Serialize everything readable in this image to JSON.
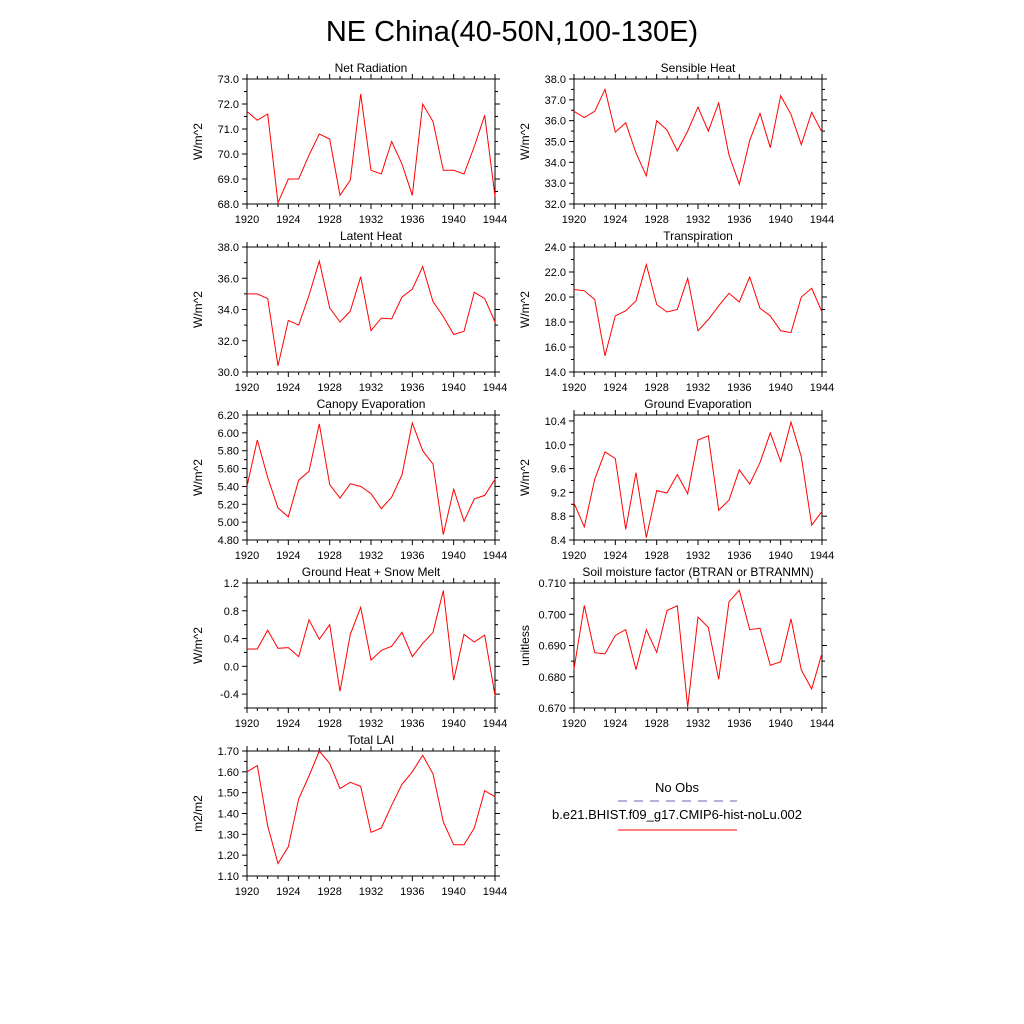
{
  "title": "NE China(40-50N,100-130E)",
  "colors": {
    "model": "#ff0000",
    "obs": "#6a6ab0"
  },
  "legend": {
    "obs_label": "No Obs",
    "model_label": "b.e21.BHIST.f09_g17.CMIP6-hist-noLu.002"
  },
  "chart_data": [
    {
      "type": "line",
      "title": "Net Radiation",
      "ylabel": "W/m^2",
      "xlim": [
        1920,
        1944
      ],
      "ylim": [
        68.0,
        73.0
      ],
      "xticks": [
        "1920",
        "1924",
        "1928",
        "1932",
        "1936",
        "1940",
        "1944"
      ],
      "yticks": [
        "68.0",
        "69.0",
        "70.0",
        "71.0",
        "72.0",
        "73.0"
      ],
      "x": [
        1920,
        1921,
        1922,
        1923,
        1924,
        1925,
        1926,
        1927,
        1928,
        1929,
        1930,
        1931,
        1932,
        1933,
        1934,
        1935,
        1936,
        1937,
        1938,
        1939,
        1940,
        1941,
        1942,
        1943,
        1944
      ],
      "series": [
        {
          "values": [
            71.7,
            71.35,
            71.6,
            68.05,
            69.0,
            69.0,
            69.95,
            70.8,
            70.6,
            68.35,
            68.95,
            72.4,
            69.35,
            69.2,
            70.5,
            69.6,
            68.35,
            72.0,
            71.3,
            69.35,
            69.35,
            69.2,
            70.3,
            71.55,
            68.3
          ]
        }
      ]
    },
    {
      "type": "line",
      "title": "Sensible Heat",
      "ylabel": "W/m^2",
      "xlim": [
        1920,
        1944
      ],
      "ylim": [
        32.0,
        38.0
      ],
      "xticks": [
        "1920",
        "1924",
        "1928",
        "1932",
        "1936",
        "1940",
        "1944"
      ],
      "yticks": [
        "32.0",
        "33.0",
        "34.0",
        "35.0",
        "36.0",
        "37.0",
        "38.0"
      ],
      "x": [
        1920,
        1921,
        1922,
        1923,
        1924,
        1925,
        1926,
        1927,
        1928,
        1929,
        1930,
        1931,
        1932,
        1933,
        1934,
        1935,
        1936,
        1937,
        1938,
        1939,
        1940,
        1941,
        1942,
        1943,
        1944
      ],
      "series": [
        {
          "values": [
            36.45,
            36.15,
            36.45,
            37.5,
            35.45,
            35.9,
            34.45,
            33.35,
            36.0,
            35.55,
            34.55,
            35.5,
            36.65,
            35.5,
            36.85,
            34.35,
            32.95,
            35.05,
            36.35,
            34.7,
            37.2,
            36.3,
            34.85,
            36.4,
            35.45
          ]
        }
      ]
    },
    {
      "type": "line",
      "title": "Latent Heat",
      "ylabel": "W/m^2",
      "xlim": [
        1920,
        1944
      ],
      "ylim": [
        30.0,
        38.0
      ],
      "xticks": [
        "1920",
        "1924",
        "1928",
        "1932",
        "1936",
        "1940",
        "1944"
      ],
      "yticks": [
        "30.0",
        "32.0",
        "34.0",
        "36.0",
        "38.0"
      ],
      "x": [
        1920,
        1921,
        1922,
        1923,
        1924,
        1925,
        1926,
        1927,
        1928,
        1929,
        1930,
        1931,
        1932,
        1933,
        1934,
        1935,
        1936,
        1937,
        1938,
        1939,
        1940,
        1941,
        1942,
        1943,
        1944
      ],
      "series": [
        {
          "values": [
            35.0,
            35.0,
            34.7,
            30.4,
            33.3,
            33.0,
            34.9,
            37.1,
            34.1,
            33.2,
            33.9,
            36.1,
            32.65,
            33.45,
            33.4,
            34.8,
            35.3,
            36.75,
            34.5,
            33.55,
            32.4,
            32.6,
            35.1,
            34.7,
            33.2
          ]
        }
      ]
    },
    {
      "type": "line",
      "title": "Transpiration",
      "ylabel": "W/m^2",
      "xlim": [
        1920,
        1944
      ],
      "ylim": [
        14.0,
        24.0
      ],
      "xticks": [
        "1920",
        "1924",
        "1928",
        "1932",
        "1936",
        "1940",
        "1944"
      ],
      "yticks": [
        "14.0",
        "16.0",
        "18.0",
        "20.0",
        "22.0",
        "24.0"
      ],
      "x": [
        1920,
        1921,
        1922,
        1923,
        1924,
        1925,
        1926,
        1927,
        1928,
        1929,
        1930,
        1931,
        1932,
        1933,
        1934,
        1935,
        1936,
        1937,
        1938,
        1939,
        1940,
        1941,
        1942,
        1943,
        1944
      ],
      "series": [
        {
          "values": [
            20.6,
            20.5,
            19.8,
            15.3,
            18.5,
            18.9,
            19.7,
            22.6,
            19.4,
            18.8,
            19.0,
            21.5,
            17.3,
            18.2,
            19.3,
            20.3,
            19.6,
            21.6,
            19.1,
            18.5,
            17.3,
            17.15,
            20.0,
            20.7,
            18.8
          ]
        }
      ]
    },
    {
      "type": "line",
      "title": "Canopy Evaporation",
      "ylabel": "W/m^2",
      "xlim": [
        1920,
        1944
      ],
      "ylim": [
        4.8,
        6.2
      ],
      "xticks": [
        "1920",
        "1924",
        "1928",
        "1932",
        "1936",
        "1940",
        "1944"
      ],
      "yticks": [
        "4.80",
        "5.00",
        "5.20",
        "5.40",
        "5.60",
        "5.80",
        "6.00",
        "6.20"
      ],
      "x": [
        1920,
        1921,
        1922,
        1923,
        1924,
        1925,
        1926,
        1927,
        1928,
        1929,
        1930,
        1931,
        1932,
        1933,
        1934,
        1935,
        1936,
        1937,
        1938,
        1939,
        1940,
        1941,
        1942,
        1943,
        1944
      ],
      "series": [
        {
          "values": [
            5.4,
            5.92,
            5.5,
            5.16,
            5.06,
            5.47,
            5.57,
            6.1,
            5.42,
            5.27,
            5.43,
            5.4,
            5.32,
            5.15,
            5.28,
            5.53,
            6.11,
            5.8,
            5.65,
            4.86,
            5.37,
            5.01,
            5.26,
            5.3,
            5.48
          ]
        }
      ]
    },
    {
      "type": "line",
      "title": "Ground Evaporation",
      "ylabel": "W/m^2",
      "xlim": [
        1920,
        1944
      ],
      "ylim": [
        8.4,
        10.5
      ],
      "xticks": [
        "1920",
        "1924",
        "1928",
        "1932",
        "1936",
        "1940",
        "1944"
      ],
      "yticks": [
        "8.4",
        "8.8",
        "9.2",
        "9.6",
        "10.0",
        "10.4"
      ],
      "x": [
        1920,
        1921,
        1922,
        1923,
        1924,
        1925,
        1926,
        1927,
        1928,
        1929,
        1930,
        1931,
        1932,
        1933,
        1934,
        1935,
        1936,
        1937,
        1938,
        1939,
        1940,
        1941,
        1942,
        1943,
        1944
      ],
      "series": [
        {
          "values": [
            9.02,
            8.62,
            9.42,
            9.88,
            9.77,
            8.58,
            9.53,
            8.44,
            9.23,
            9.19,
            9.5,
            9.18,
            10.08,
            10.15,
            8.9,
            9.07,
            9.58,
            9.34,
            9.7,
            10.2,
            9.72,
            10.38,
            9.8,
            8.65,
            8.88
          ]
        }
      ]
    },
    {
      "type": "line",
      "title": "Ground Heat + Snow Melt",
      "ylabel": "W/m^2",
      "xlim": [
        1920,
        1944
      ],
      "ylim": [
        -0.6,
        1.2
      ],
      "xticks": [
        "1920",
        "1924",
        "1928",
        "1932",
        "1936",
        "1940",
        "1944"
      ],
      "yticks": [
        "-0.4",
        "0.0",
        "0.4",
        "0.8",
        "1.2"
      ],
      "x": [
        1920,
        1921,
        1922,
        1923,
        1924,
        1925,
        1926,
        1927,
        1928,
        1929,
        1930,
        1931,
        1932,
        1933,
        1934,
        1935,
        1936,
        1937,
        1938,
        1939,
        1940,
        1941,
        1942,
        1943,
        1944
      ],
      "series": [
        {
          "values": [
            0.25,
            0.25,
            0.52,
            0.26,
            0.27,
            0.14,
            0.67,
            0.39,
            0.6,
            -0.36,
            0.46,
            0.85,
            0.09,
            0.23,
            0.29,
            0.49,
            0.14,
            0.33,
            0.49,
            1.09,
            -0.2,
            0.46,
            0.35,
            0.45,
            -0.42
          ]
        }
      ]
    },
    {
      "type": "line",
      "title": "Soil moisture factor (BTRAN or BTRANMN)",
      "ylabel": "unitless",
      "xlim": [
        1920,
        1944
      ],
      "ylim": [
        0.67,
        0.71
      ],
      "xticks": [
        "1920",
        "1924",
        "1928",
        "1932",
        "1936",
        "1940",
        "1944"
      ],
      "yticks": [
        "0.670",
        "0.680",
        "0.690",
        "0.700",
        "0.710"
      ],
      "x": [
        1920,
        1921,
        1922,
        1923,
        1924,
        1925,
        1926,
        1927,
        1928,
        1929,
        1930,
        1931,
        1932,
        1933,
        1934,
        1935,
        1936,
        1937,
        1938,
        1939,
        1940,
        1941,
        1942,
        1943,
        1944
      ],
      "series": [
        {
          "values": [
            0.6825,
            0.7028,
            0.6877,
            0.6873,
            0.6932,
            0.6951,
            0.6823,
            0.6951,
            0.6878,
            0.7012,
            0.7027,
            0.6703,
            0.6991,
            0.6958,
            0.6792,
            0.704,
            0.7077,
            0.6951,
            0.6955,
            0.6837,
            0.6848,
            0.6985,
            0.6822,
            0.6761,
            0.6875
          ]
        }
      ]
    },
    {
      "type": "line",
      "title": "Total LAI",
      "ylabel": "m2/m2",
      "xlim": [
        1920,
        1944
      ],
      "ylim": [
        1.1,
        1.7
      ],
      "xticks": [
        "1920",
        "1924",
        "1928",
        "1932",
        "1936",
        "1940",
        "1944"
      ],
      "yticks": [
        "1.10",
        "1.20",
        "1.30",
        "1.40",
        "1.50",
        "1.60",
        "1.70"
      ],
      "x": [
        1920,
        1921,
        1922,
        1923,
        1924,
        1925,
        1926,
        1927,
        1928,
        1929,
        1930,
        1931,
        1932,
        1933,
        1934,
        1935,
        1936,
        1937,
        1938,
        1939,
        1940,
        1941,
        1942,
        1943,
        1944
      ],
      "series": [
        {
          "values": [
            1.6,
            1.63,
            1.34,
            1.16,
            1.24,
            1.47,
            1.58,
            1.7,
            1.64,
            1.52,
            1.55,
            1.53,
            1.31,
            1.33,
            1.44,
            1.54,
            1.6,
            1.68,
            1.59,
            1.36,
            1.25,
            1.25,
            1.33,
            1.51,
            1.48
          ]
        }
      ]
    }
  ]
}
